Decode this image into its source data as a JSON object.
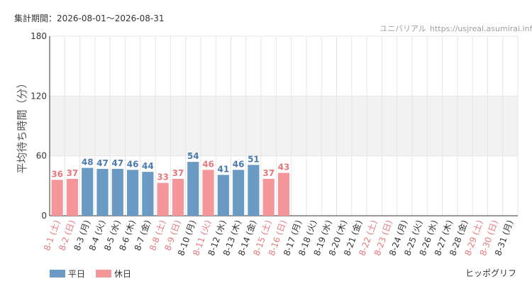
{
  "header": {
    "period_label": "集計期間：2026-08-01〜2026-08-31",
    "site_name": "ユニバリアル",
    "site_url": "https://usjreal.asumirai.info"
  },
  "footer": {
    "credit": "ヒッポグリフ"
  },
  "colors": {
    "weekday": "#6b9ac4",
    "weekday_text": "#4a7bb0",
    "holiday": "#f4969a",
    "holiday_text": "#e8787c",
    "band": "#f2f2f2",
    "grid": "#e6e6e6",
    "axis": "#333333"
  },
  "chart_data": {
    "type": "bar",
    "ylabel": "平均待ち時間（分）",
    "ylim": [
      0,
      180
    ],
    "yticks": [
      0,
      60,
      120,
      180
    ],
    "bands": [
      [
        60,
        120
      ]
    ],
    "grid": true,
    "legend_position": "bottom-left",
    "legend": [
      {
        "key": "weekday",
        "label": "平日"
      },
      {
        "key": "holiday",
        "label": "休日"
      }
    ],
    "categories": [
      "8-1 (土)",
      "8-2 (日)",
      "8-3 (月)",
      "8-4 (火)",
      "8-5 (水)",
      "8-6 (木)",
      "8-7 (金)",
      "8-8 (土)",
      "8-9 (日)",
      "8-10 (月)",
      "8-11 (火)",
      "8-12 (水)",
      "8-13 (木)",
      "8-14 (金)",
      "8-15 (土)",
      "8-16 (日)",
      "8-17 (月)",
      "8-18 (火)",
      "8-19 (水)",
      "8-20 (木)",
      "8-21 (金)",
      "8-22 (土)",
      "8-23 (日)",
      "8-24 (月)",
      "8-25 (火)",
      "8-26 (水)",
      "8-27 (木)",
      "8-28 (金)",
      "8-29 (土)",
      "8-30 (日)",
      "8-31 (月)"
    ],
    "day_types": [
      "holiday",
      "holiday",
      "weekday",
      "weekday",
      "weekday",
      "weekday",
      "weekday",
      "holiday",
      "holiday",
      "weekday",
      "holiday",
      "weekday",
      "weekday",
      "weekday",
      "holiday",
      "holiday",
      "weekday",
      "weekday",
      "weekday",
      "weekday",
      "weekday",
      "holiday",
      "holiday",
      "weekday",
      "weekday",
      "weekday",
      "weekday",
      "weekday",
      "holiday",
      "holiday",
      "weekday"
    ],
    "values": [
      36,
      37,
      48,
      47,
      47,
      46,
      44,
      33,
      37,
      54,
      46,
      41,
      46,
      51,
      37,
      43,
      null,
      null,
      null,
      null,
      null,
      null,
      null,
      null,
      null,
      null,
      null,
      null,
      null,
      null,
      null
    ]
  }
}
